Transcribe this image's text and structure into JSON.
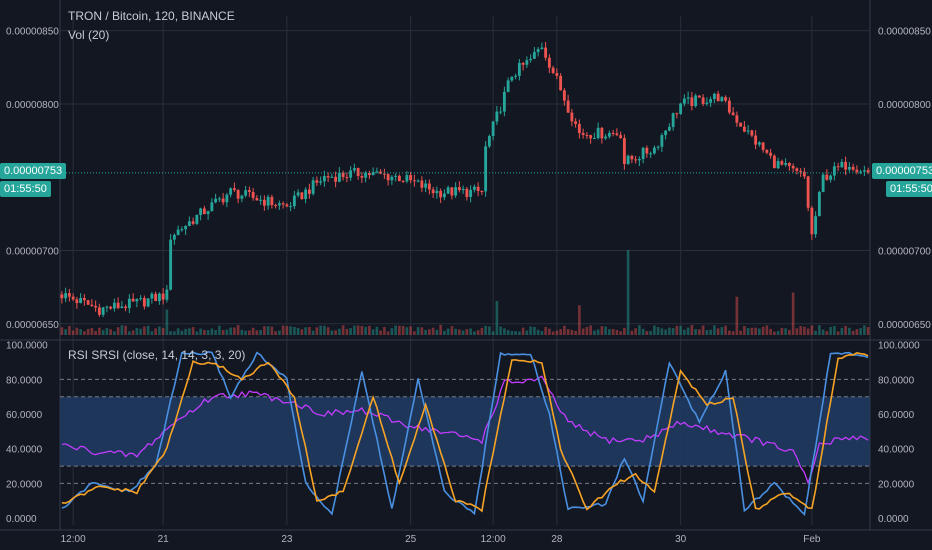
{
  "header": {
    "symbol_line": "TRON / Bitcoin, 120, BINANCE",
    "volume_label": "Vol (20)",
    "indicator_label": "RSI SRSI (close, 14, 14, 3, 3, 20)"
  },
  "price_tag": {
    "value": "0.00000753",
    "countdown": "01:55:50"
  },
  "colors": {
    "background": "#131722",
    "grid": "#2a2e39",
    "up": "#26a69a",
    "down": "#ef5350",
    "rsi": "#c13cff",
    "stoch_k": "#4a90e2",
    "stoch_d": "#f7a325",
    "band": "#1f3a5f"
  },
  "chart_data": [
    {
      "type": "candlestick",
      "title": "TRON / Bitcoin, 120, BINANCE",
      "y_ticks": [
        "0.00000850",
        "0.00000800",
        "0.00000700",
        "0.00000650"
      ],
      "y_tick_values": [
        8.5e-06,
        8e-06,
        7e-06,
        6.5e-06
      ],
      "ylim": [
        6.41e-06,
        8.6e-06
      ],
      "x_ticks": [
        "12:00",
        "21",
        "23",
        "25",
        "12:00",
        "28",
        "30",
        "Feb"
      ],
      "x_tick_index": [
        3,
        27,
        60,
        93,
        115,
        132,
        165,
        200
      ],
      "n_bars": 216,
      "close_anchors": [
        [
          0,
          6.7e-06
        ],
        [
          10,
          6.6e-06
        ],
        [
          20,
          6.64e-06
        ],
        [
          28,
          6.7e-06
        ],
        [
          29,
          7.1e-06
        ],
        [
          45,
          7.4e-06
        ],
        [
          60,
          7.3e-06
        ],
        [
          70,
          7.5e-06
        ],
        [
          80,
          7.53e-06
        ],
        [
          90,
          7.5e-06
        ],
        [
          100,
          7.4e-06
        ],
        [
          112,
          7.4e-06
        ],
        [
          113,
          7.7e-06
        ],
        [
          120,
          8.2e-06
        ],
        [
          125,
          8.3e-06
        ],
        [
          128,
          8.4e-06
        ],
        [
          133,
          8.1e-06
        ],
        [
          138,
          7.8e-06
        ],
        [
          145,
          7.8e-06
        ],
        [
          149,
          7.8e-06
        ],
        [
          150,
          7.6e-06
        ],
        [
          158,
          7.7e-06
        ],
        [
          165,
          8e-06
        ],
        [
          175,
          8.05e-06
        ],
        [
          183,
          7.8e-06
        ],
        [
          190,
          7.6e-06
        ],
        [
          198,
          7.5e-06
        ],
        [
          200,
          7.1e-06
        ],
        [
          203,
          7.5e-06
        ],
        [
          210,
          7.6e-06
        ],
        [
          215,
          7.53e-06
        ]
      ],
      "volume_spikes": [
        [
          28,
          0.3
        ],
        [
          116,
          0.4
        ],
        [
          138,
          0.35
        ],
        [
          151,
          1.0
        ],
        [
          180,
          0.45
        ],
        [
          195,
          0.5
        ]
      ]
    },
    {
      "type": "line",
      "title": "RSI SRSI (close, 14, 14, 3, 3, 20)",
      "y_ticks": [
        "100.0000",
        "80.0000",
        "60.0000",
        "40.0000",
        "20.0000",
        "0.0000"
      ],
      "y_tick_values": [
        100,
        80,
        60,
        40,
        20,
        0
      ],
      "ylim": [
        -4,
        101
      ],
      "bands": {
        "outer": [
          20,
          80
        ],
        "inner": [
          30,
          70
        ]
      },
      "series": [
        {
          "role": "rsi",
          "anchors": [
            [
              0,
              42
            ],
            [
              10,
              38
            ],
            [
              20,
              36
            ],
            [
              30,
              55
            ],
            [
              40,
              70
            ],
            [
              50,
              72
            ],
            [
              60,
              68
            ],
            [
              70,
              60
            ],
            [
              80,
              62
            ],
            [
              90,
              55
            ],
            [
              100,
              50
            ],
            [
              112,
              45
            ],
            [
              118,
              78
            ],
            [
              128,
              80
            ],
            [
              135,
              55
            ],
            [
              145,
              45
            ],
            [
              155,
              45
            ],
            [
              165,
              55
            ],
            [
              175,
              50
            ],
            [
              185,
              45
            ],
            [
              195,
              38
            ],
            [
              199,
              20
            ],
            [
              202,
              42
            ],
            [
              210,
              47
            ],
            [
              215,
              46
            ]
          ]
        },
        {
          "role": "stoch_k",
          "anchors": [
            [
              0,
              5
            ],
            [
              8,
              20
            ],
            [
              18,
              15
            ],
            [
              25,
              30
            ],
            [
              32,
              95
            ],
            [
              40,
              95
            ],
            [
              45,
              70
            ],
            [
              52,
              95
            ],
            [
              60,
              80
            ],
            [
              65,
              20
            ],
            [
              72,
              2
            ],
            [
              80,
              85
            ],
            [
              88,
              5
            ],
            [
              95,
              80
            ],
            [
              102,
              15
            ],
            [
              110,
              2
            ],
            [
              117,
              95
            ],
            [
              125,
              95
            ],
            [
              130,
              60
            ],
            [
              135,
              5
            ],
            [
              145,
              8
            ],
            [
              150,
              35
            ],
            [
              155,
              10
            ],
            [
              162,
              90
            ],
            [
              170,
              55
            ],
            [
              177,
              85
            ],
            [
              182,
              5
            ],
            [
              190,
              20
            ],
            [
              198,
              2
            ],
            [
              205,
              95
            ],
            [
              210,
              95
            ],
            [
              215,
              92
            ]
          ]
        },
        {
          "role": "stoch_d",
          "anchors": [
            [
              0,
              8
            ],
            [
              10,
              18
            ],
            [
              20,
              15
            ],
            [
              28,
              40
            ],
            [
              35,
              90
            ],
            [
              42,
              88
            ],
            [
              48,
              80
            ],
            [
              55,
              90
            ],
            [
              62,
              70
            ],
            [
              68,
              10
            ],
            [
              75,
              15
            ],
            [
              83,
              70
            ],
            [
              90,
              20
            ],
            [
              97,
              65
            ],
            [
              105,
              10
            ],
            [
              112,
              5
            ],
            [
              120,
              92
            ],
            [
              128,
              90
            ],
            [
              133,
              40
            ],
            [
              140,
              5
            ],
            [
              148,
              20
            ],
            [
              153,
              25
            ],
            [
              158,
              15
            ],
            [
              165,
              85
            ],
            [
              172,
              65
            ],
            [
              179,
              70
            ],
            [
              185,
              5
            ],
            [
              193,
              15
            ],
            [
              200,
              5
            ],
            [
              207,
              92
            ],
            [
              212,
              95
            ],
            [
              215,
              93
            ]
          ]
        }
      ]
    }
  ]
}
